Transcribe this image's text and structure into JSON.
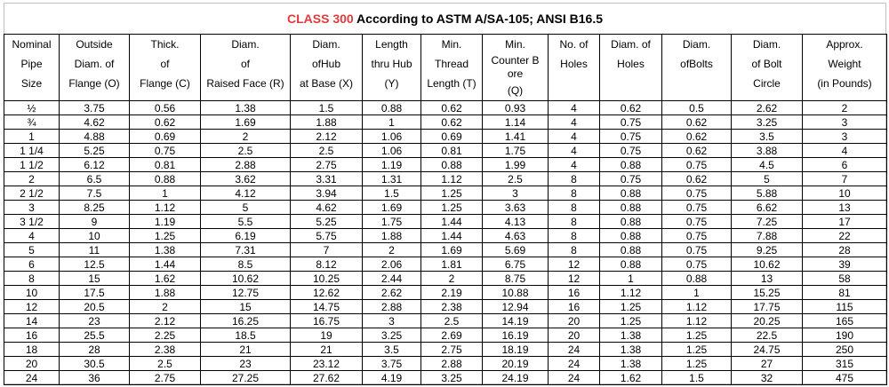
{
  "title": {
    "accent": "CLASS 300",
    "rest": " According to ASTM A/SA-105; ANSI B16.5"
  },
  "columns": [
    [
      "Nominal",
      "Pipe",
      "Size"
    ],
    [
      "Outside",
      "Diam. of",
      "Flange (O)"
    ],
    [
      "Thick.",
      "of",
      "Flange (C)"
    ],
    [
      "Diam.",
      "of",
      "Raised Face (R)"
    ],
    [
      "Diam.",
      "ofHub",
      "at Base (X)"
    ],
    [
      "Length",
      "thru Hub",
      "(Y)"
    ],
    [
      "Min.",
      "Thread",
      "Length (T)"
    ],
    [
      "Min.",
      "Counter B",
      "ore",
      "(Q)"
    ],
    [
      "No. of",
      "Holes",
      ""
    ],
    [
      "Diam. of",
      "Holes",
      ""
    ],
    [
      "Diam.",
      "ofBolts",
      ""
    ],
    [
      "Diam.",
      "of Bolt",
      "Circle"
    ],
    [
      "Approx.",
      "Weight",
      "(in Pounds)"
    ]
  ],
  "rows": [
    [
      "½",
      "3.75",
      "0.56",
      "1.38",
      "1.5",
      "0.88",
      "0.62",
      "0.93",
      "4",
      "0.62",
      "0.5",
      "2.62",
      "2"
    ],
    [
      "¾",
      "4.62",
      "0.62",
      "1.69",
      "1.88",
      "1",
      "0.62",
      "1.14",
      "4",
      "0.75",
      "0.62",
      "3.25",
      "3"
    ],
    [
      "1",
      "4.88",
      "0.69",
      "2",
      "2.12",
      "1.06",
      "0.69",
      "1.41",
      "4",
      "0.75",
      "0.62",
      "3.5",
      "3"
    ],
    [
      "1 1/4",
      "5.25",
      "0.75",
      "2.5",
      "2.5",
      "1.06",
      "0.81",
      "1.75",
      "4",
      "0.75",
      "0.62",
      "3.88",
      "4"
    ],
    [
      "1 1/2",
      "6.12",
      "0.81",
      "2.88",
      "2.75",
      "1.19",
      "0.88",
      "1.99",
      "4",
      "0.88",
      "0.75",
      "4.5",
      "6"
    ],
    [
      "2",
      "6.5",
      "0.88",
      "3.62",
      "3.31",
      "1.31",
      "1.12",
      "2.5",
      "8",
      "0.75",
      "0.62",
      "5",
      "7"
    ],
    [
      "2 1/2",
      "7.5",
      "1",
      "4.12",
      "3.94",
      "1.5",
      "1.25",
      "3",
      "8",
      "0.88",
      "0.75",
      "5.88",
      "10"
    ],
    [
      "3",
      "8.25",
      "1.12",
      "5",
      "4.62",
      "1.69",
      "1.25",
      "3.63",
      "8",
      "0.88",
      "0.75",
      "6.62",
      "13"
    ],
    [
      "3 1/2",
      "9",
      "1.19",
      "5.5",
      "5.25",
      "1.75",
      "1.44",
      "4.13",
      "8",
      "0.88",
      "0.75",
      "7.25",
      "17"
    ],
    [
      "4",
      "10",
      "1.25",
      "6.19",
      "5.75",
      "1.88",
      "1.44",
      "4.63",
      "8",
      "0.88",
      "0.75",
      "7.88",
      "22"
    ],
    [
      "5",
      "11",
      "1.38",
      "7.31",
      "7",
      "2",
      "1.69",
      "5.69",
      "8",
      "0.88",
      "0.75",
      "9.25",
      "28"
    ],
    [
      "6",
      "12.5",
      "1.44",
      "8.5",
      "8.12",
      "2.06",
      "1.81",
      "6.75",
      "12",
      "0.88",
      "0.75",
      "10.62",
      "39"
    ],
    [
      "8",
      "15",
      "1.62",
      "10.62",
      "10.25",
      "2.44",
      "2",
      "8.75",
      "12",
      "1",
      "0.88",
      "13",
      "58"
    ],
    [
      "10",
      "17.5",
      "1.88",
      "12.75",
      "12.62",
      "2.62",
      "2.19",
      "10.88",
      "16",
      "1.12",
      "1",
      "15.25",
      "81"
    ],
    [
      "12",
      "20.5",
      "2",
      "15",
      "14.75",
      "2.88",
      "2.38",
      "12.94",
      "16",
      "1.25",
      "1.12",
      "17.75",
      "115"
    ],
    [
      "14",
      "23",
      "2.12",
      "16.25",
      "16.75",
      "3",
      "2.5",
      "14.19",
      "20",
      "1.25",
      "1.12",
      "20.25",
      "165"
    ],
    [
      "16",
      "25.5",
      "2.25",
      "18.5",
      "19",
      "3.25",
      "2.69",
      "16.19",
      "20",
      "1.38",
      "1.25",
      "22.5",
      "190"
    ],
    [
      "18",
      "28",
      "2.38",
      "21",
      "21",
      "3.5",
      "2.75",
      "18.19",
      "24",
      "1.38",
      "1.25",
      "24.75",
      "250"
    ],
    [
      "20",
      "30.5",
      "2.5",
      "23",
      "23.12",
      "3.75",
      "2.88",
      "20.19",
      "24",
      "1.38",
      "1.25",
      "27",
      "315"
    ],
    [
      "24",
      "36",
      "2.75",
      "27.25",
      "27.62",
      "4.19",
      "3.25",
      "24.19",
      "24",
      "1.62",
      "1.5",
      "32",
      "475"
    ]
  ],
  "colors": {
    "accent": "#e03a3a",
    "grid": "#000000"
  }
}
